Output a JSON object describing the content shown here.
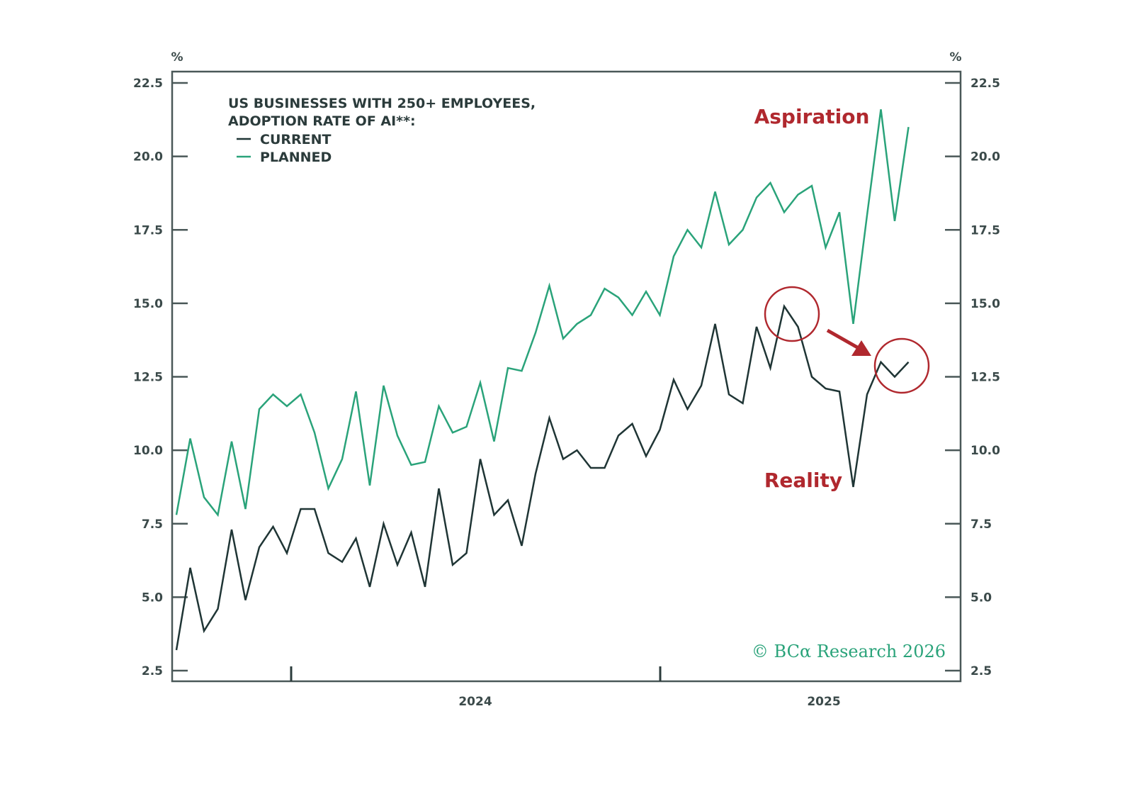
{
  "chart_data": {
    "type": "line",
    "title": "US BUSINESSES WITH 250+ EMPLOYEES, ADOPTION RATE OF AI**:",
    "ylabel_left": "%",
    "ylabel_right": "%",
    "ylim": [
      2.5,
      22.5
    ],
    "y_ticks": [
      "22.5",
      "20.0",
      "17.5",
      "15.0",
      "12.5",
      "10.0",
      "7.5",
      "5.0",
      "2.5"
    ],
    "x_tick_labels": [
      "2024",
      "2025"
    ],
    "grid": false,
    "legend_placement": "top-left",
    "x": [
      "2023-09-11",
      "2023-09-25",
      "2023-10-09",
      "2023-10-23",
      "2023-11-06",
      "2023-11-20",
      "2023-12-04",
      "2023-12-18",
      "2024-01-01",
      "2024-01-15",
      "2024-01-29",
      "2024-02-12",
      "2024-02-26",
      "2024-03-11",
      "2024-03-25",
      "2024-04-08",
      "2024-04-22",
      "2024-05-06",
      "2024-05-20",
      "2024-06-03",
      "2024-06-17",
      "2024-07-01",
      "2024-07-15",
      "2024-07-29",
      "2024-08-12",
      "2024-08-26",
      "2024-09-09",
      "2024-09-23",
      "2024-10-07",
      "2024-10-21",
      "2024-11-04",
      "2024-11-18",
      "2024-12-02",
      "2024-12-16",
      "2024-12-30",
      "2025-01-13",
      "2025-01-27",
      "2025-02-10",
      "2025-02-24",
      "2025-03-10",
      "2025-03-24",
      "2025-04-07",
      "2025-04-21",
      "2025-05-05",
      "2025-05-19",
      "2025-06-02",
      "2025-06-16",
      "2025-06-30",
      "2025-07-14",
      "2025-07-28",
      "2025-08-11",
      "2025-08-25",
      "2025-09-08",
      "2025-09-22"
    ],
    "series": [
      {
        "name": "CURRENT",
        "color": "#1f3535",
        "values": [
          3.2,
          6.0,
          3.85,
          4.6,
          7.3,
          4.9,
          6.7,
          7.4,
          6.5,
          8.0,
          8.0,
          6.5,
          6.2,
          7.0,
          5.35,
          7.5,
          6.1,
          7.2,
          5.35,
          8.7,
          6.1,
          6.5,
          9.7,
          7.8,
          8.3,
          6.75,
          9.2,
          11.1,
          9.7,
          10.0,
          9.4,
          9.4,
          10.5,
          10.9,
          9.8,
          10.7,
          12.4,
          11.4,
          12.2,
          14.3,
          11.9,
          11.6,
          14.2,
          12.8,
          14.9,
          14.2,
          12.5,
          12.1,
          12.0,
          8.75,
          11.9,
          13.0,
          12.5,
          13.0
        ]
      },
      {
        "name": "PLANNED",
        "color": "#2aa37a",
        "values": [
          7.8,
          10.4,
          8.4,
          7.8,
          10.3,
          8.0,
          11.4,
          11.9,
          11.5,
          11.9,
          10.6,
          8.7,
          9.7,
          12.0,
          8.8,
          12.2,
          10.5,
          9.5,
          9.6,
          11.5,
          10.6,
          10.8,
          12.3,
          10.3,
          12.8,
          12.7,
          14.0,
          15.6,
          13.8,
          14.3,
          14.6,
          15.5,
          15.2,
          14.6,
          15.4,
          14.6,
          16.6,
          17.5,
          16.9,
          18.8,
          17.0,
          17.5,
          18.6,
          19.1,
          18.1,
          18.7,
          19.0,
          16.9,
          18.1,
          14.3,
          18.0,
          21.6,
          17.8,
          21.0
        ]
      }
    ],
    "annotations": {
      "aspiration": "Aspiration",
      "reality": "Reality",
      "color": "#b0282e"
    },
    "watermark": "© BCα Research 2026"
  }
}
